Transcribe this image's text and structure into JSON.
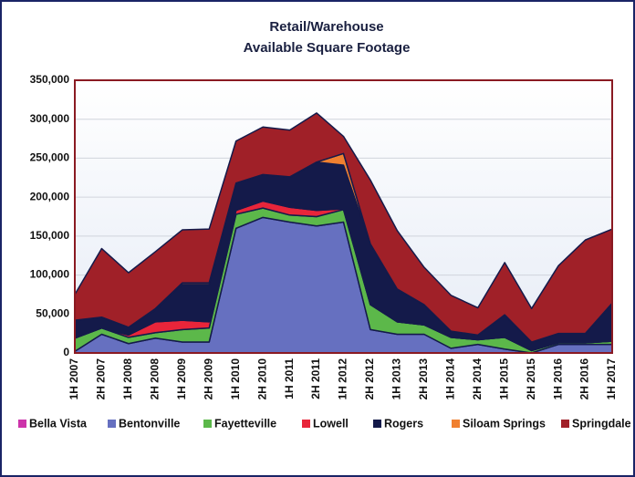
{
  "chart_data": {
    "type": "stacked_area",
    "title": "Retail/Warehouse",
    "subtitle": "Available Square Footage",
    "categories": [
      "1H 2007",
      "2H 2007",
      "1H 2008",
      "2H 2008",
      "1H 2009",
      "2H 2009",
      "1H 2010",
      "2H 2010",
      "1H 2011",
      "2H 2011",
      "1H 2012",
      "2H 2012",
      "1H 2013",
      "2H 2013",
      "1H 2014",
      "2H 2014",
      "1H 2015",
      "2H 2015",
      "1H 2016",
      "2H 2016",
      "1H 2017"
    ],
    "series": [
      {
        "name": "Bella Vista",
        "color": "#cc33aa",
        "values": [
          0,
          0,
          0,
          0,
          0,
          0,
          0,
          0,
          0,
          0,
          0,
          0,
          0,
          0,
          0,
          0,
          0,
          0,
          0,
          0,
          0
        ]
      },
      {
        "name": "Bentonville",
        "color": "#6670c0",
        "values": [
          2000,
          24000,
          12000,
          19000,
          14000,
          14000,
          160000,
          174000,
          168000,
          163000,
          168000,
          30000,
          24000,
          24000,
          6000,
          11000,
          5000,
          0,
          11000,
          11000,
          11000
        ]
      },
      {
        "name": "Fayetteville",
        "color": "#5cb84a",
        "values": [
          17000,
          8000,
          8000,
          7000,
          16000,
          18000,
          18000,
          12000,
          9000,
          12000,
          16000,
          32000,
          16000,
          12000,
          14000,
          6000,
          15000,
          3000,
          2000,
          2000,
          4000
        ]
      },
      {
        "name": "Lowell",
        "color": "#e8253a",
        "values": [
          0,
          0,
          3000,
          14000,
          12000,
          8000,
          5000,
          9000,
          10000,
          8000,
          1000,
          0,
          0,
          0,
          0,
          0,
          0,
          0,
          0,
          0,
          0
        ]
      },
      {
        "name": "Rogers",
        "color": "#141a4a",
        "values": [
          23000,
          14000,
          10000,
          15000,
          46000,
          48000,
          35000,
          34000,
          39000,
          62000,
          56000,
          78000,
          42000,
          26000,
          8000,
          6000,
          29000,
          11000,
          12000,
          12000,
          49000
        ]
      },
      {
        "name": "Siloam Springs",
        "color": "#f08030",
        "values": [
          0,
          0,
          0,
          2000,
          2000,
          2000,
          0,
          0,
          0,
          0,
          15000,
          0,
          0,
          0,
          0,
          0,
          0,
          0,
          0,
          0,
          0
        ]
      },
      {
        "name": "Springdale",
        "color": "#a02028",
        "values": [
          33000,
          88000,
          70000,
          73000,
          68000,
          69000,
          54000,
          61000,
          60000,
          63000,
          22000,
          82000,
          75000,
          48000,
          46000,
          35000,
          67000,
          43000,
          87000,
          120000,
          95000
        ]
      }
    ],
    "ylim": [
      0,
      350000
    ],
    "yticks": [
      0,
      {
        "value": 50000,
        "label": "50,000"
      },
      {
        "value": 100000,
        "label": "100,000"
      },
      {
        "value": 150000,
        "label": "150,000"
      },
      {
        "value": 200000,
        "label": "200,000"
      },
      {
        "value": 250000,
        "label": "250,000"
      },
      {
        "value": 300000,
        "label": "300,000"
      },
      {
        "value": 350000,
        "label": "350,000"
      }
    ],
    "grid": true,
    "legend": "bottom"
  }
}
